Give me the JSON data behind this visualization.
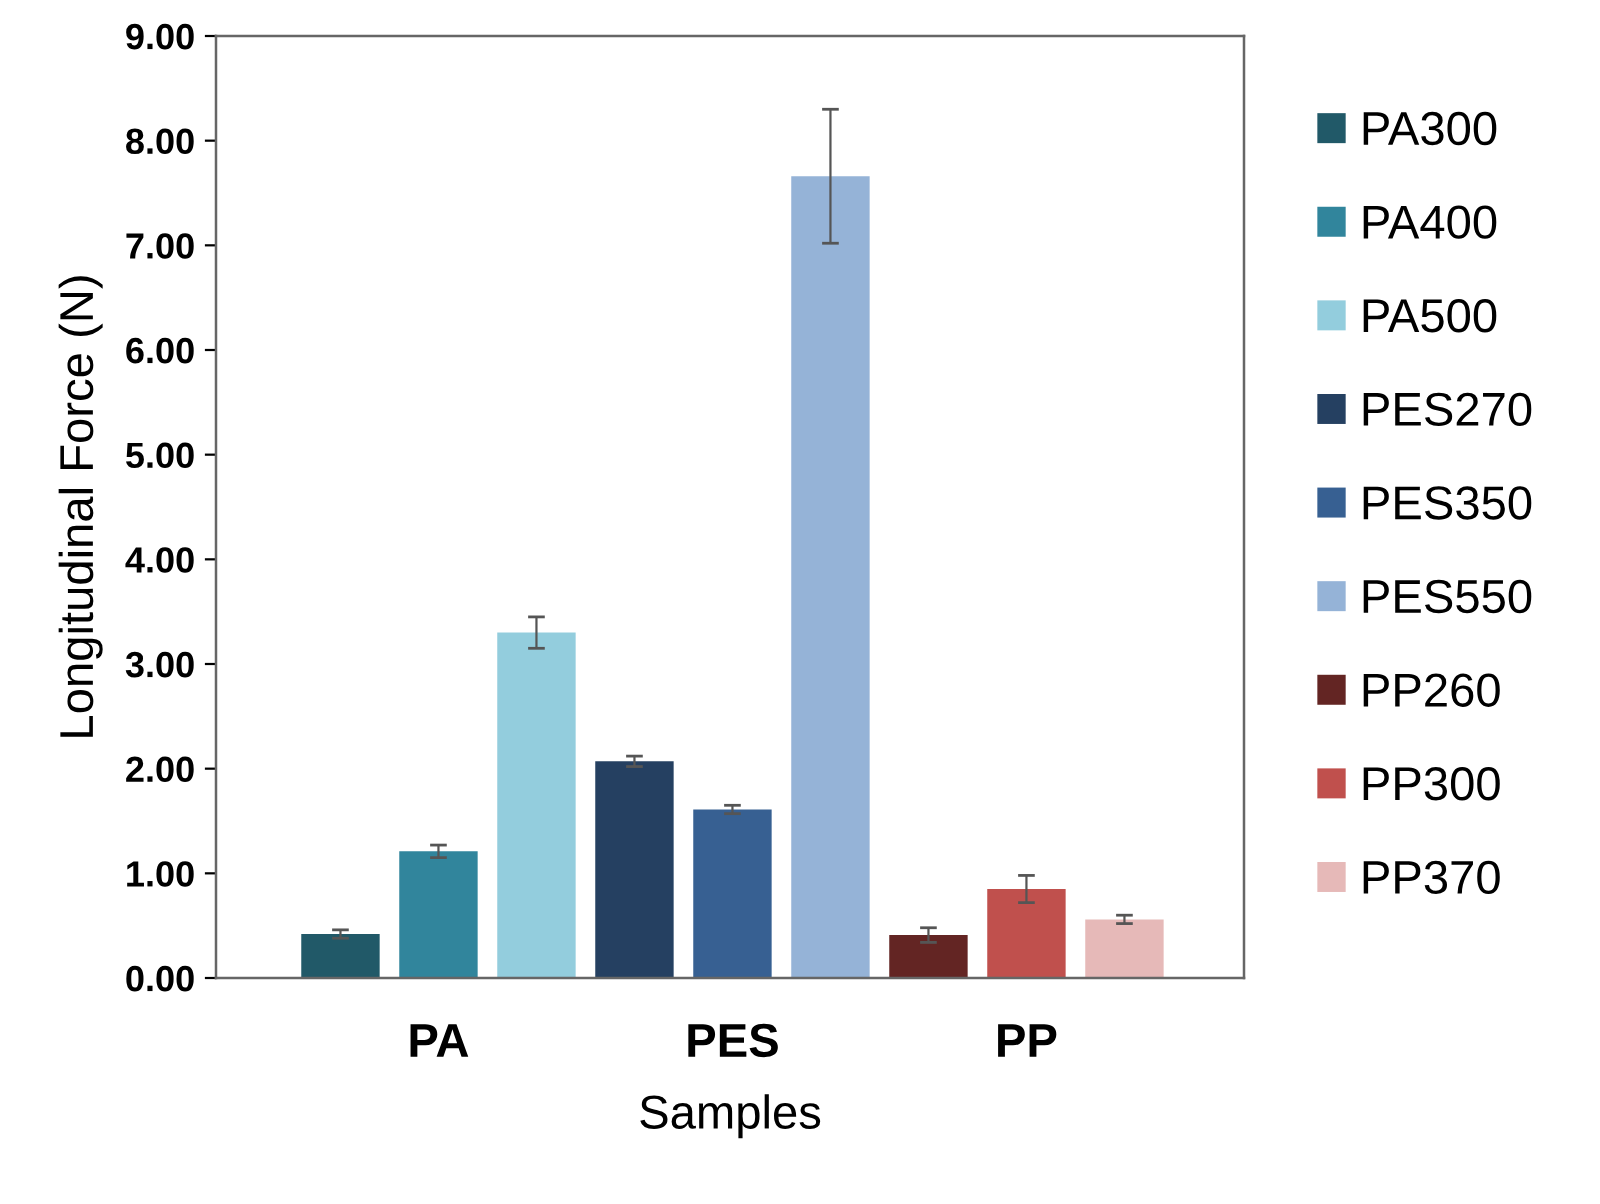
{
  "chart_data": {
    "type": "bar",
    "xlabel": "Samples",
    "ylabel": "Longitudinal Force (N)",
    "categories": [
      "PA",
      "PES",
      "PP"
    ],
    "series": [
      {
        "name": "PA300",
        "color": "#215968",
        "values": [
          0.42,
          null,
          null
        ],
        "errors": [
          0.04,
          null,
          null
        ]
      },
      {
        "name": "PA400",
        "color": "#31859c",
        "values": [
          1.21,
          null,
          null
        ],
        "errors": [
          0.06,
          null,
          null
        ]
      },
      {
        "name": "PA500",
        "color": "#93cddd",
        "values": [
          3.3,
          null,
          null
        ],
        "errors": [
          0.15,
          null,
          null
        ]
      },
      {
        "name": "PES270",
        "color": "#254061",
        "values": [
          null,
          2.07,
          null
        ],
        "errors": [
          null,
          0.05,
          null
        ]
      },
      {
        "name": "PES350",
        "color": "#376092",
        "values": [
          null,
          1.61,
          null
        ],
        "errors": [
          null,
          0.04,
          null
        ]
      },
      {
        "name": "PES550",
        "color": "#95b3d7",
        "values": [
          null,
          7.66,
          null
        ],
        "errors": [
          null,
          0.64,
          null
        ]
      },
      {
        "name": "PP260",
        "color": "#632523",
        "values": [
          null,
          null,
          0.41
        ],
        "errors": [
          null,
          null,
          0.07
        ]
      },
      {
        "name": "PP300",
        "color": "#c0504d",
        "values": [
          null,
          null,
          0.85
        ],
        "errors": [
          null,
          null,
          0.13
        ]
      },
      {
        "name": "PP370",
        "color": "#e6b9b8",
        "values": [
          null,
          null,
          0.56
        ],
        "errors": [
          null,
          null,
          0.04
        ]
      }
    ],
    "ylim": [
      0,
      9
    ],
    "yticks": [
      {
        "value": 0,
        "label": "0.00"
      },
      {
        "value": 1,
        "label": "1.00"
      },
      {
        "value": 2,
        "label": "2.00"
      },
      {
        "value": 3,
        "label": "3.00"
      },
      {
        "value": 4,
        "label": "4.00"
      },
      {
        "value": 5,
        "label": "5.00"
      },
      {
        "value": 6,
        "label": "6.00"
      },
      {
        "value": 7,
        "label": "7.00"
      },
      {
        "value": 8,
        "label": "8.00"
      },
      {
        "value": 9,
        "label": "9.00"
      }
    ],
    "grid": false,
    "legend": "right"
  }
}
